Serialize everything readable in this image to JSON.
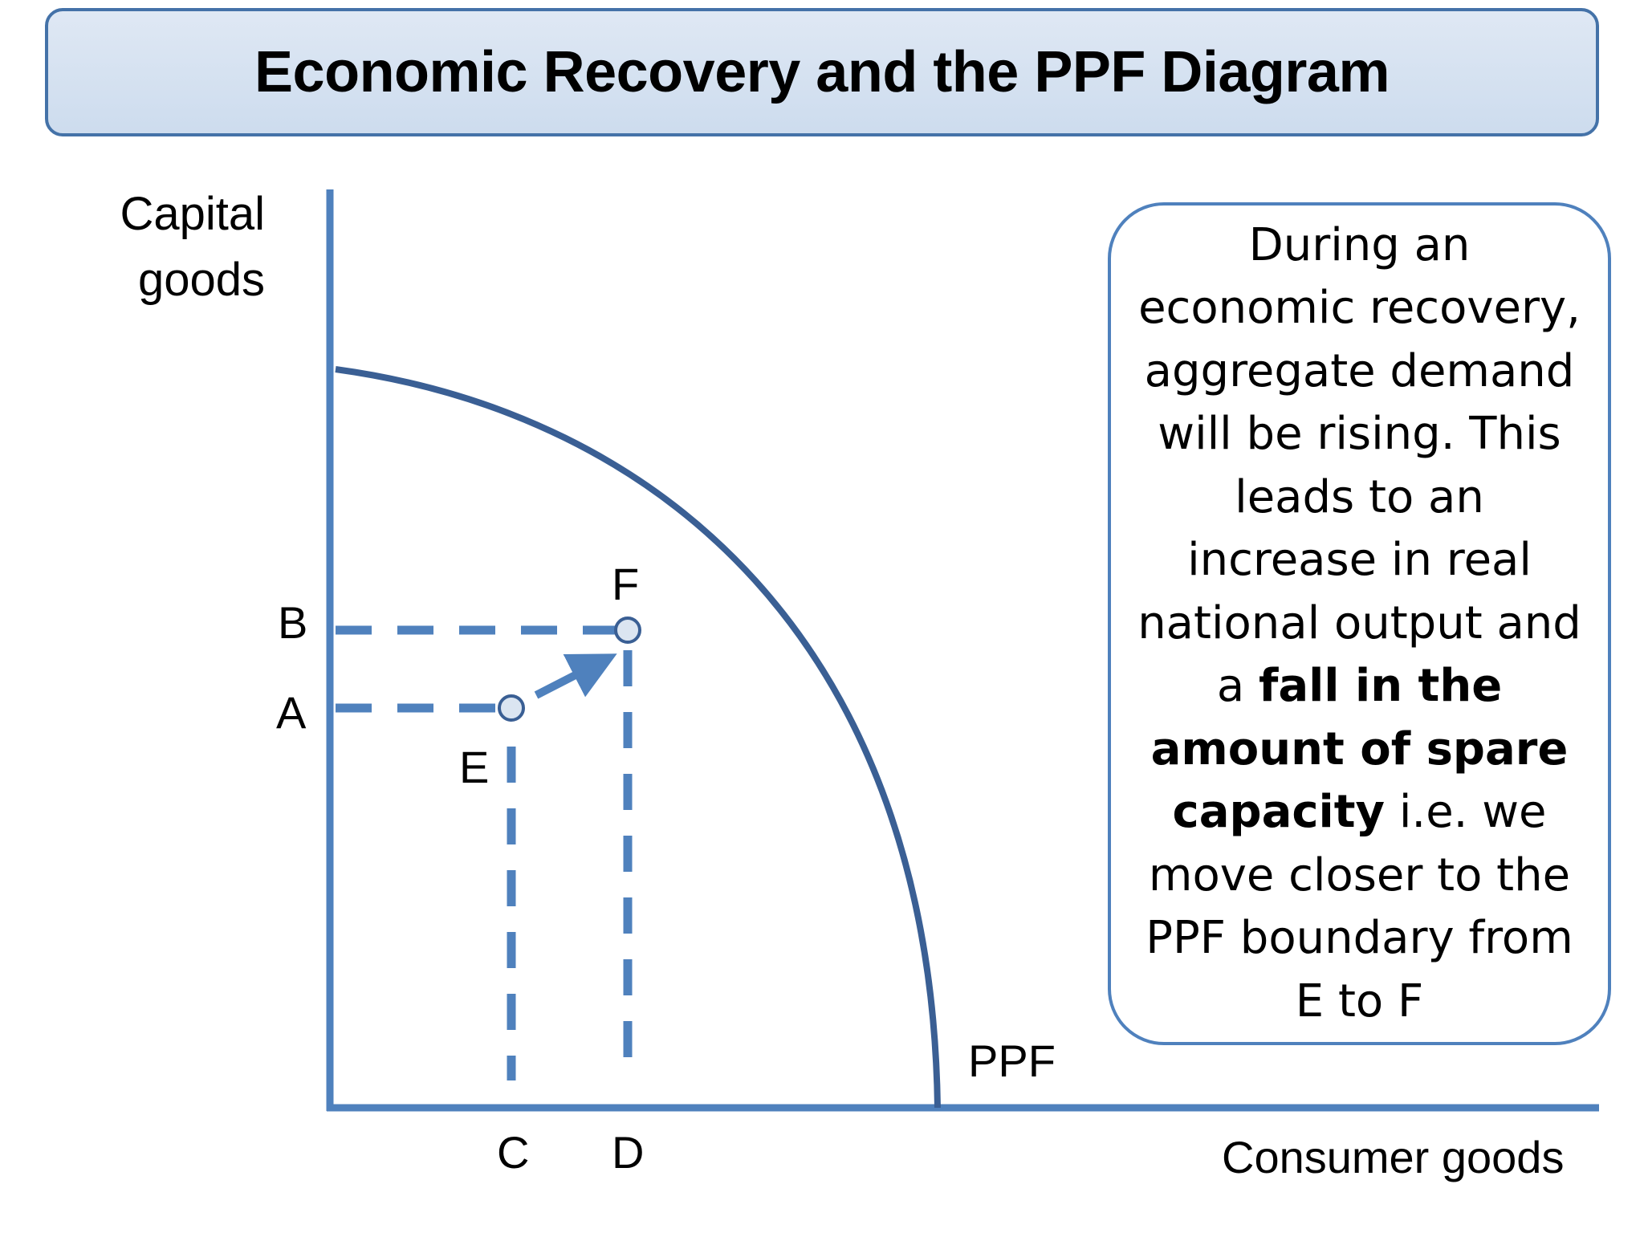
{
  "title": "Economic Recovery and the PPF Diagram",
  "axes": {
    "y_label_line1": "Capital",
    "y_label_line2": "goods",
    "x_label": "Consumer goods"
  },
  "curve_label": "PPF",
  "points": {
    "E": "E",
    "F": "F"
  },
  "y_ticks": {
    "A": "A",
    "B": "B"
  },
  "x_ticks": {
    "C": "C",
    "D": "D"
  },
  "explanation": {
    "part1": "During an economic recovery, aggregate demand will be rising. This leads to an increase in real national output and a ",
    "bold1": "fall in the amount of spare capacity",
    "part2": " i.e. we move closer to the PPF boundary from E to F"
  },
  "colors": {
    "axis": "#4f81bd",
    "curve": "#3a5f94",
    "dashed": "#4f81bd",
    "point_fill": "#dbe5f1",
    "title_border": "#4472a8",
    "title_fill": "#d6e2f1"
  }
}
